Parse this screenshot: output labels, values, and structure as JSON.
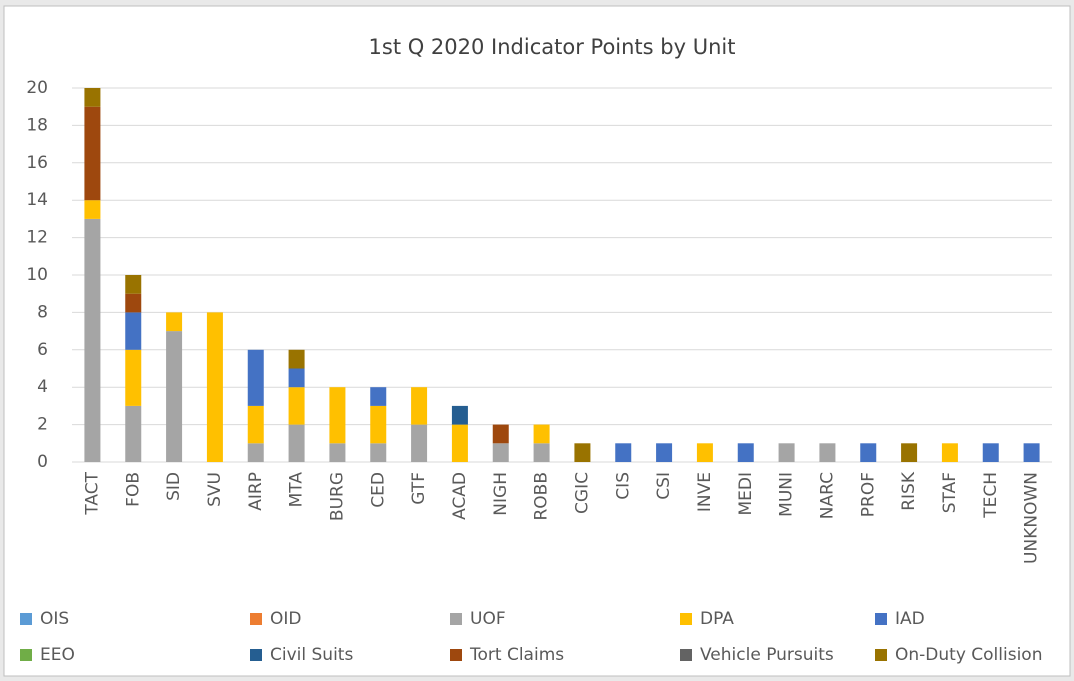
{
  "chart_data": {
    "type": "stacked_bar",
    "title": "1st Q 2020 Indicator Points by Unit",
    "categories": [
      "TACT",
      "FOB",
      "SID",
      "SVU",
      "AIRP",
      "MTA",
      "BURG",
      "CED",
      "GTF",
      "ACAD",
      "NIGH",
      "ROBB",
      "CGIC",
      "CIS",
      "CSI",
      "INVE",
      "MEDI",
      "MUNI",
      "NARC",
      "PROF",
      "RISK",
      "STAF",
      "TECH",
      "UNKNOWN"
    ],
    "series": [
      {
        "name": "OIS",
        "color": "#5b9bd5",
        "values": [
          0,
          0,
          0,
          0,
          0,
          0,
          0,
          0,
          0,
          0,
          0,
          0,
          0,
          0,
          0,
          0,
          0,
          0,
          0,
          0,
          0,
          0,
          0,
          0
        ]
      },
      {
        "name": "OID",
        "color": "#ed7d31",
        "values": [
          0,
          0,
          0,
          0,
          0,
          0,
          0,
          0,
          0,
          0,
          0,
          0,
          0,
          0,
          0,
          0,
          0,
          0,
          0,
          0,
          0,
          0,
          0,
          0
        ]
      },
      {
        "name": "UOF",
        "color": "#a5a5a5",
        "values": [
          13,
          3,
          7,
          0,
          1,
          2,
          1,
          1,
          2,
          0,
          1,
          1,
          0,
          0,
          0,
          0,
          0,
          1,
          1,
          0,
          0,
          0,
          0,
          0
        ]
      },
      {
        "name": "DPA",
        "color": "#ffc000",
        "values": [
          1,
          3,
          1,
          8,
          2,
          2,
          3,
          2,
          2,
          2,
          0,
          1,
          0,
          0,
          0,
          1,
          0,
          0,
          0,
          0,
          0,
          1,
          0,
          0
        ]
      },
      {
        "name": "IAD",
        "color": "#4472c4",
        "values": [
          0,
          2,
          0,
          0,
          3,
          1,
          0,
          1,
          0,
          0,
          0,
          0,
          0,
          1,
          1,
          0,
          1,
          0,
          0,
          1,
          0,
          0,
          1,
          1
        ]
      },
      {
        "name": "EEO",
        "color": "#70ad47",
        "values": [
          0,
          0,
          0,
          0,
          0,
          0,
          0,
          0,
          0,
          0,
          0,
          0,
          0,
          0,
          0,
          0,
          0,
          0,
          0,
          0,
          0,
          0,
          0,
          0
        ]
      },
      {
        "name": "Civil Suits",
        "color": "#255e91",
        "values": [
          0,
          0,
          0,
          0,
          0,
          0,
          0,
          0,
          0,
          1,
          0,
          0,
          0,
          0,
          0,
          0,
          0,
          0,
          0,
          0,
          0,
          0,
          0,
          0
        ]
      },
      {
        "name": "Tort Claims",
        "color": "#9e480e",
        "values": [
          5,
          1,
          0,
          0,
          0,
          0,
          0,
          0,
          0,
          0,
          1,
          0,
          0,
          0,
          0,
          0,
          0,
          0,
          0,
          0,
          0,
          0,
          0,
          0
        ]
      },
      {
        "name": "Vehicle Pursuits",
        "color": "#636363",
        "values": [
          0,
          0,
          0,
          0,
          0,
          0,
          0,
          0,
          0,
          0,
          0,
          0,
          0,
          0,
          0,
          0,
          0,
          0,
          0,
          0,
          0,
          0,
          0,
          0
        ]
      },
      {
        "name": "On-Duty Collision",
        "color": "#997300",
        "values": [
          1,
          1,
          0,
          0,
          0,
          1,
          0,
          0,
          0,
          0,
          0,
          0,
          1,
          0,
          0,
          0,
          0,
          0,
          0,
          0,
          1,
          0,
          0,
          0
        ]
      }
    ],
    "ylim": [
      0,
      20
    ],
    "yticks": [
      0,
      2,
      4,
      6,
      8,
      10,
      12,
      14,
      16,
      18,
      20
    ],
    "grid": true,
    "legend": "bottom"
  }
}
